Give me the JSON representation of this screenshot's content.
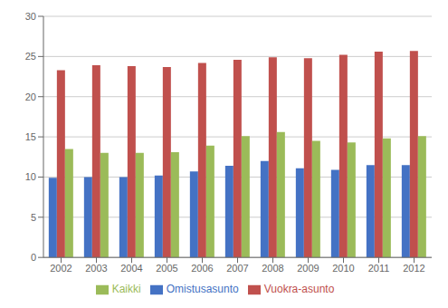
{
  "chart_data": {
    "type": "bar",
    "categories": [
      "2002",
      "2003",
      "2004",
      "2005",
      "2006",
      "2007",
      "2008",
      "2009",
      "2010",
      "2011",
      "2012"
    ],
    "series": [
      {
        "name": "Omistusasunto",
        "color": "#4472c4",
        "values": [
          9.9,
          10.0,
          10.0,
          10.2,
          10.7,
          11.4,
          12.0,
          11.1,
          10.9,
          11.5,
          11.5
        ]
      },
      {
        "name": "Vuokra-asunto",
        "color": "#c0504d",
        "values": [
          23.3,
          23.9,
          23.8,
          23.7,
          24.2,
          24.6,
          24.9,
          24.8,
          25.2,
          25.6,
          25.7
        ]
      },
      {
        "name": "Kaikki",
        "color": "#9bbb59",
        "values": [
          13.5,
          13.0,
          13.0,
          13.1,
          13.9,
          15.1,
          15.6,
          14.5,
          14.3,
          14.8,
          15.1
        ]
      }
    ],
    "ylim": [
      0,
      30
    ],
    "yticks": [
      0,
      5,
      10,
      15,
      20,
      25,
      30
    ],
    "grid": true,
    "legend": "bottom"
  }
}
